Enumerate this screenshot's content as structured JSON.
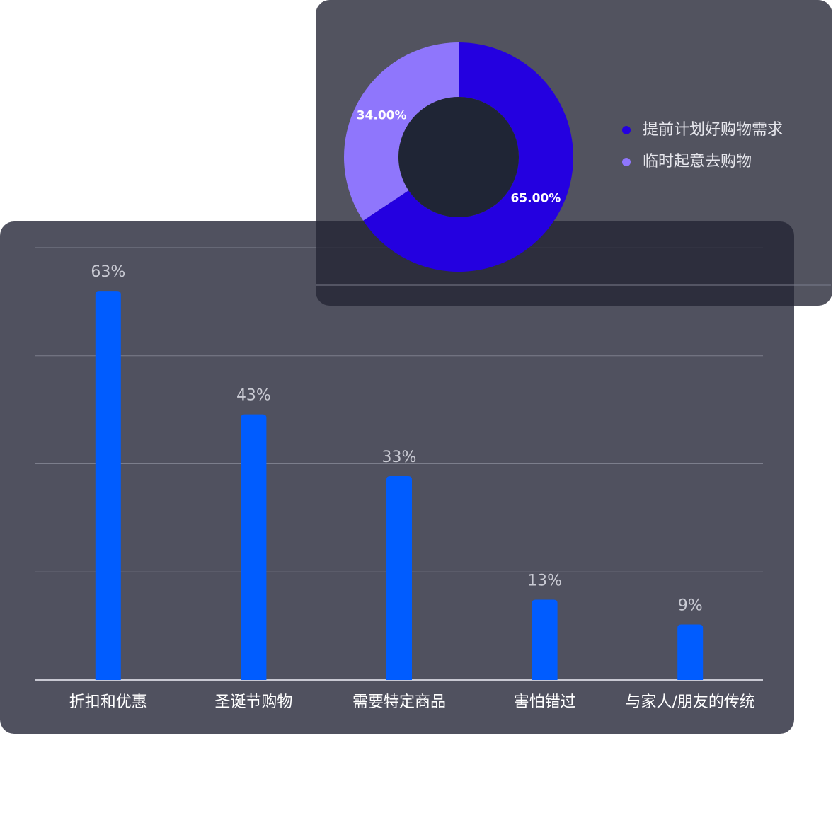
{
  "chart_data": [
    {
      "type": "bar",
      "categories": [
        "折扣和优惠",
        "圣诞节购物",
        "需要特定商品",
        "害怕错过",
        "与家人/朋友的传统"
      ],
      "values": [
        63,
        43,
        33,
        13,
        9
      ],
      "value_labels": [
        "63%",
        "43%",
        "33%",
        "13%",
        "9%"
      ],
      "color": "#005cff",
      "ylim": [
        0,
        70
      ],
      "yticks": [
        0,
        17.5,
        35,
        52.5,
        70
      ],
      "grid": true
    },
    {
      "type": "pie",
      "categories": [
        "提前计划好购物需求",
        "临时起意去购物"
      ],
      "values": [
        65,
        34
      ],
      "value_labels": [
        "65.00%",
        "34.00%"
      ],
      "colors": [
        "#2400e0",
        "#8f76fc"
      ],
      "legend": "right"
    }
  ]
}
